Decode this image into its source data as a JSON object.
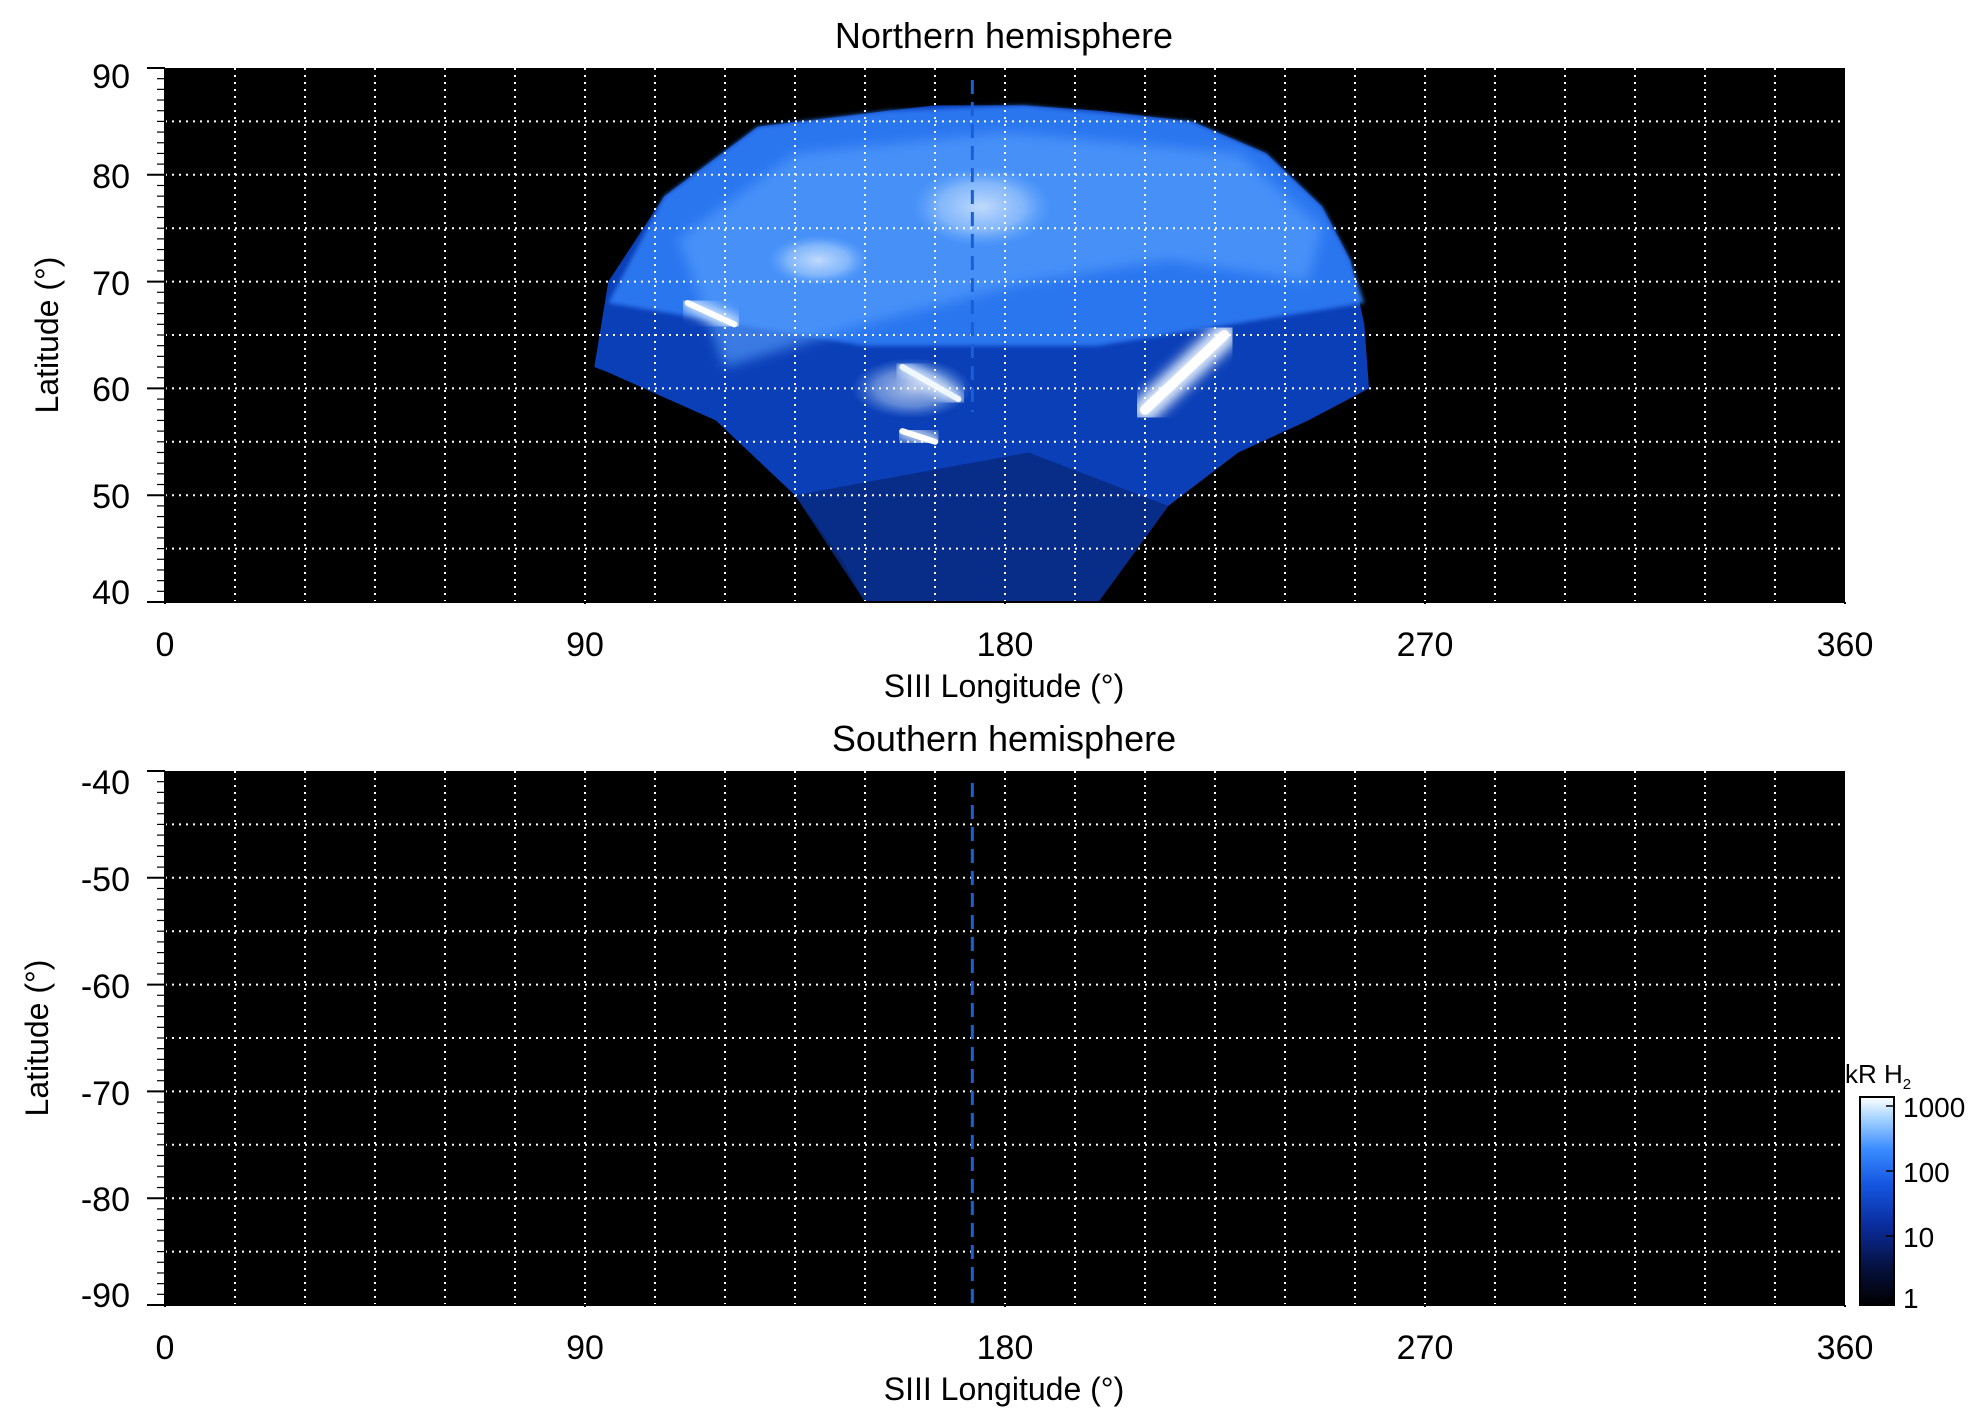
{
  "chart_data": [
    {
      "type": "heatmap",
      "title": "Northern hemisphere",
      "xlabel": "SIII Longitude (°)",
      "ylabel": "Latitude (°)",
      "xlim": [
        0,
        360
      ],
      "ylim": [
        40,
        90
      ],
      "x_ticks": [
        0,
        90,
        180,
        270,
        360
      ],
      "y_ticks": [
        40,
        50,
        60,
        70,
        80,
        90
      ],
      "x_tick_labels": [
        "0",
        "90",
        "180",
        "270",
        "360"
      ],
      "y_tick_labels": [
        "40",
        "50",
        "60",
        "70",
        "80",
        "90"
      ],
      "grid": true,
      "grid_x_step": 15,
      "grid_y_step": 5,
      "background_color": "#000000",
      "reference_longitude": 173,
      "reference_line_color": "#1a5fd6",
      "emission_region": {
        "longitude_range": [
          90,
          257
        ],
        "latitude_range": [
          40,
          86
        ],
        "bright_features": [
          {
            "lon": [
              227,
              210
            ],
            "lat": [
              65,
              58
            ],
            "note": "main oval arc"
          },
          {
            "lon": [
              112,
              122
            ],
            "lat": [
              68,
              66
            ]
          },
          {
            "lon": [
              158,
              170
            ],
            "lat": [
              62,
              59
            ]
          },
          {
            "lon": [
              158,
              165
            ],
            "lat": [
              56,
              55
            ]
          }
        ]
      }
    },
    {
      "type": "heatmap",
      "title": "Southern hemisphere",
      "xlabel": "SIII Longitude (°)",
      "ylabel": "Latitude (°)",
      "xlim": [
        0,
        360
      ],
      "ylim": [
        -90,
        -40
      ],
      "x_ticks": [
        0,
        90,
        180,
        270,
        360
      ],
      "y_ticks": [
        -40,
        -50,
        -60,
        -70,
        -80,
        -90
      ],
      "x_tick_labels": [
        "0",
        "90",
        "180",
        "270",
        "360"
      ],
      "y_tick_labels": [
        "-40",
        "-50",
        "-60",
        "-70",
        "-80",
        "-90"
      ],
      "grid": true,
      "grid_x_step": 15,
      "grid_y_step": 5,
      "background_color": "#000000",
      "reference_longitude": 173,
      "reference_line_color": "#1a5fd6",
      "emission_region": null
    }
  ],
  "colorbar": {
    "label_main": "kR H",
    "label_sub": "2",
    "scale": "log",
    "range": [
      1,
      1000
    ],
    "tick_labels": [
      "1000",
      "100",
      "10",
      "1"
    ],
    "tick_values": [
      1000,
      100,
      10,
      1
    ],
    "colors": [
      "#000000",
      "#06113f",
      "#0a2c9c",
      "#1456e0",
      "#3a8cff",
      "#a8d4ff",
      "#ffffff"
    ]
  }
}
